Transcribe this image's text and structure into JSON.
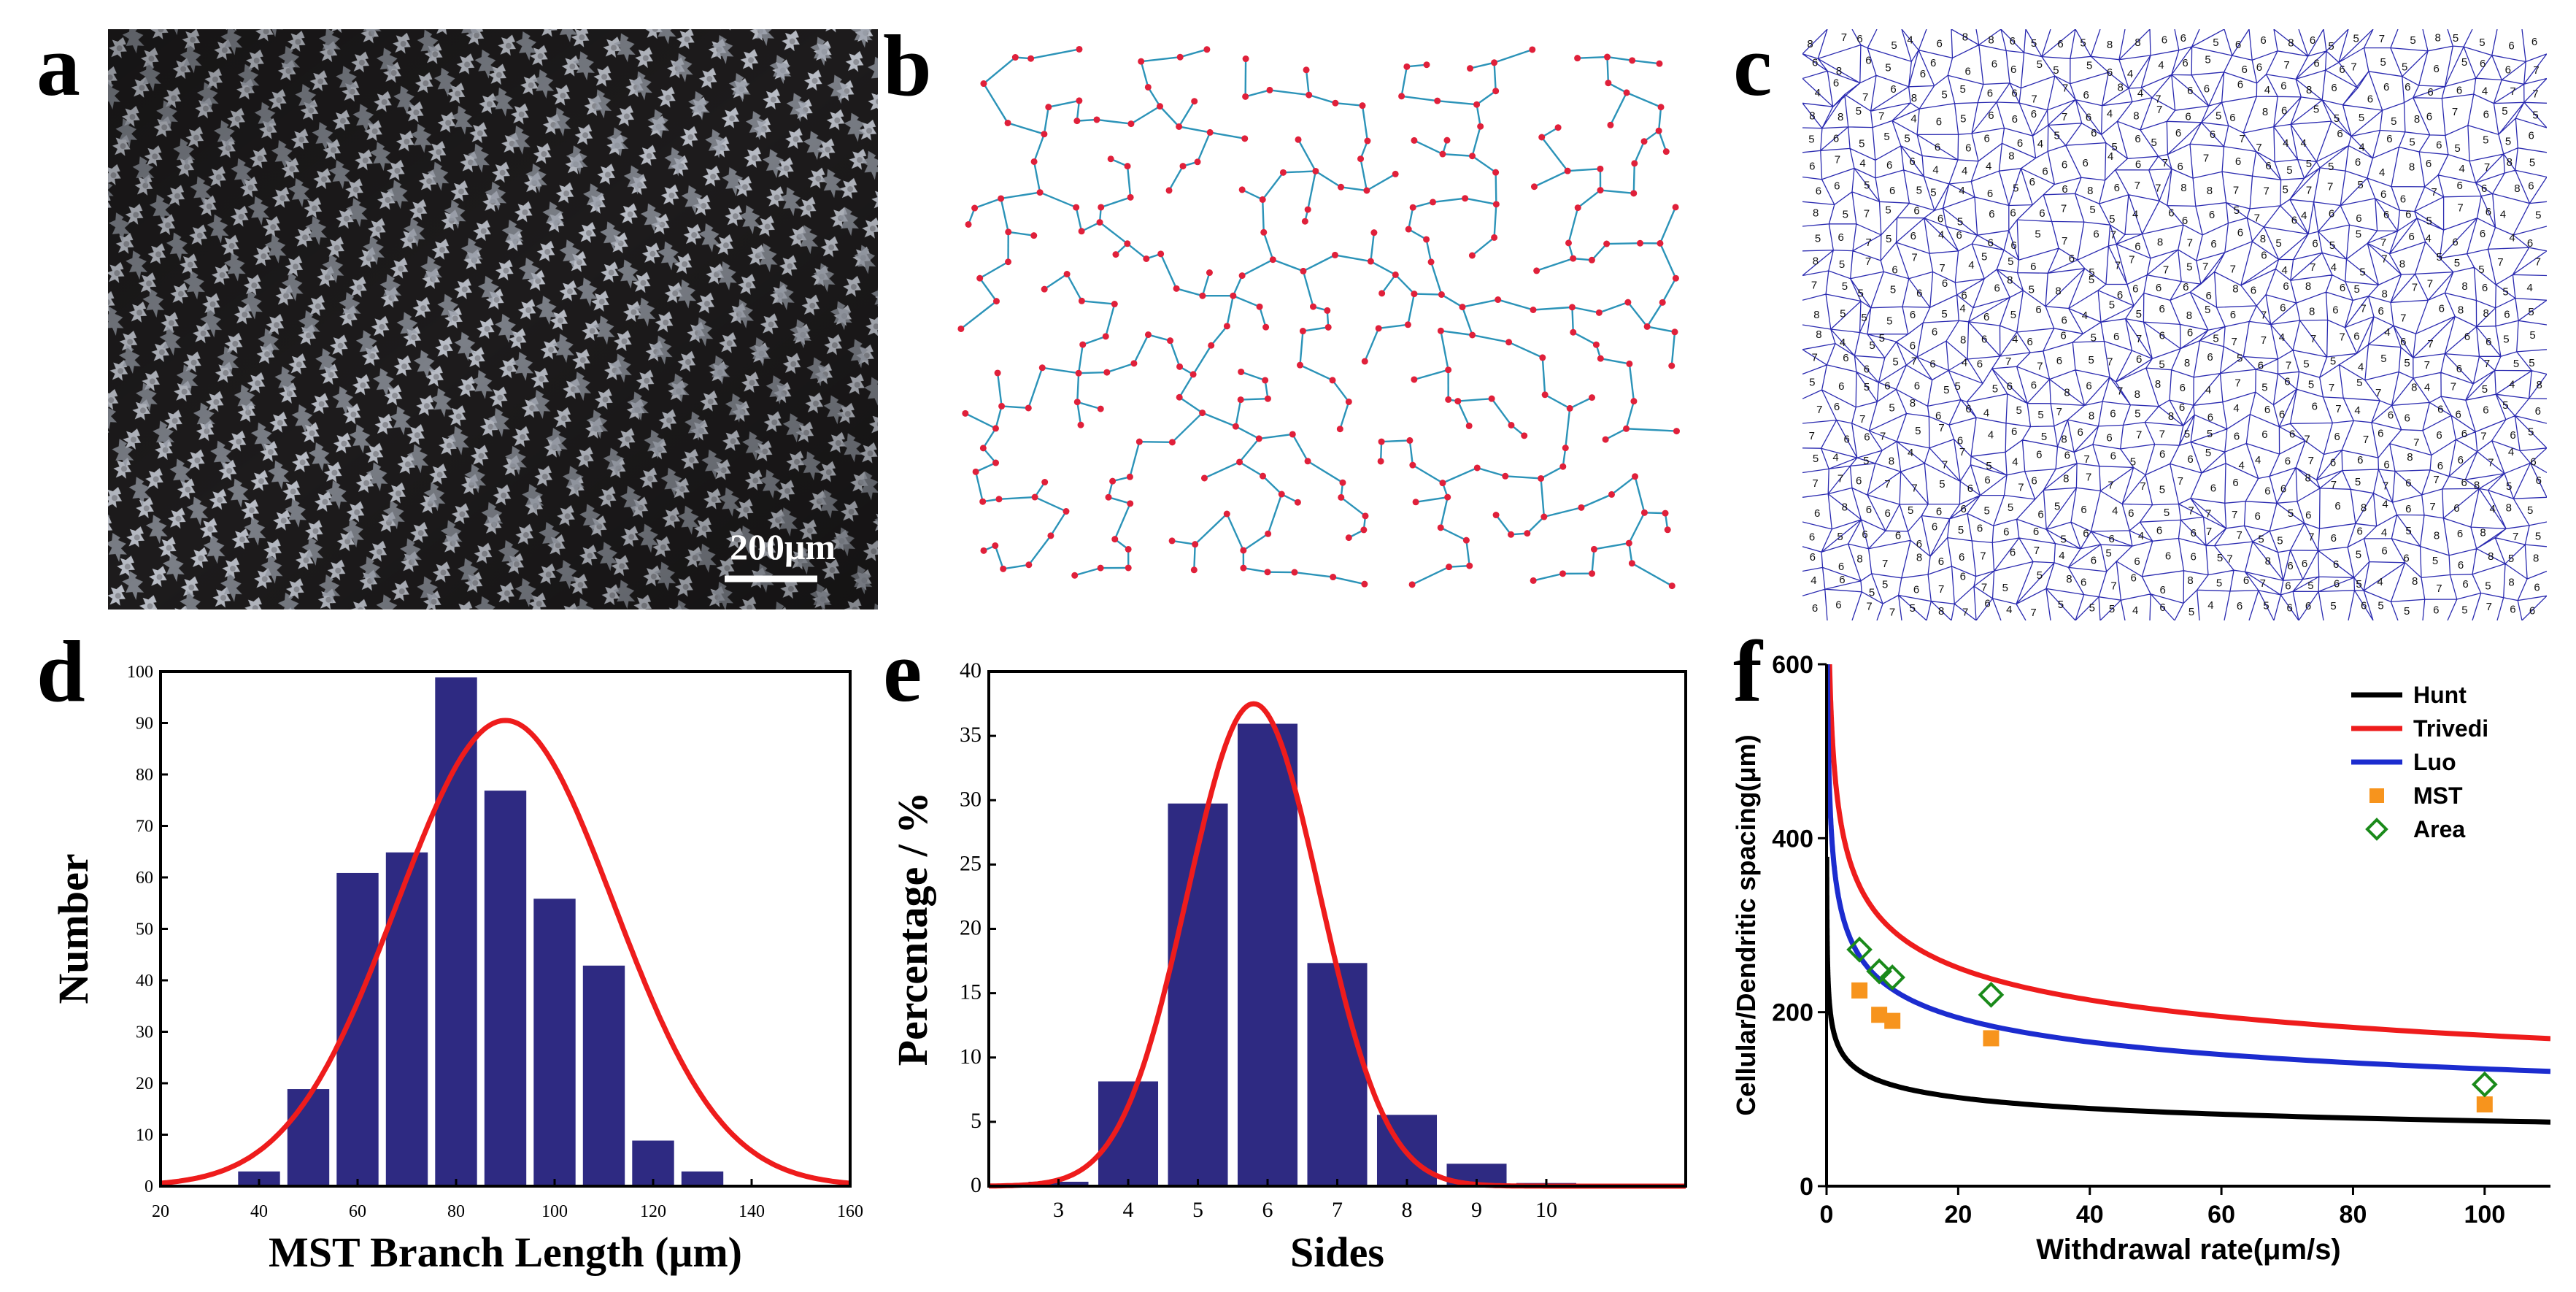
{
  "panels": {
    "a": {
      "letter": "a",
      "scale_bar": "200μm"
    },
    "b": {
      "letter": "b"
    },
    "c": {
      "letter": "c"
    },
    "d": {
      "letter": "d"
    },
    "e": {
      "letter": "e"
    },
    "f": {
      "letter": "f"
    }
  },
  "chart_data": [
    {
      "id": "d",
      "type": "bar",
      "title": "",
      "xlabel": "MST Branch Length (μm)",
      "ylabel": "Number",
      "xlim": [
        20,
        160
      ],
      "ylim": [
        0,
        100
      ],
      "xticks": [
        "20",
        "40",
        "60",
        "80",
        "100",
        "120",
        "140",
        "160"
      ],
      "yticks": [
        "0",
        "10",
        "20",
        "30",
        "40",
        "50",
        "60",
        "70",
        "80",
        "90",
        "100"
      ],
      "x": [
        40,
        50,
        60,
        70,
        80,
        90,
        100,
        110,
        120,
        130,
        140
      ],
      "values": [
        3,
        19,
        61,
        65,
        99,
        77,
        56,
        43,
        9,
        3,
        0
      ],
      "bar_color": "#2e2a82",
      "fit": {
        "type": "gaussian",
        "center": 90,
        "peak": 90.5,
        "sigma": 22,
        "color": "#ee1c1c"
      }
    },
    {
      "id": "e",
      "type": "bar",
      "title": "",
      "xlabel": "Sides",
      "ylabel": "Percentage / %",
      "xlim": [
        2,
        12
      ],
      "ylim": [
        0,
        40
      ],
      "xticks": [
        "3",
        "4",
        "5",
        "6",
        "7",
        "8",
        "9",
        "10"
      ],
      "yticks": [
        "0",
        "5",
        "10",
        "15",
        "20",
        "25",
        "30",
        "35",
        "40"
      ],
      "categories": [
        "3",
        "4",
        "5",
        "6",
        "7",
        "8",
        "9",
        "10"
      ],
      "values": [
        0.4,
        8.2,
        29.8,
        36,
        17.4,
        5.6,
        1.8,
        0.3
      ],
      "bar_color": "#2e2a82",
      "fit": {
        "type": "gaussian",
        "center": 5.8,
        "peak": 37.5,
        "sigma": 0.95,
        "color": "#ee1c1c"
      }
    },
    {
      "id": "f",
      "type": "line",
      "title": "",
      "xlabel": "Withdrawal rate(μm/s)",
      "ylabel": "Cellular/Dendritic spacing(μm)",
      "xlim": [
        0,
        110
      ],
      "ylim": [
        0,
        600
      ],
      "xticks": [
        "0",
        "20",
        "40",
        "60",
        "80",
        "100"
      ],
      "yticks": [
        "0",
        "200",
        "400",
        "600"
      ],
      "series": [
        {
          "name": "Hunt",
          "color": "#000000",
          "kind": "line",
          "a": 180,
          "exp": -0.19
        },
        {
          "name": "Trivedi",
          "color": "#ee1c1c",
          "kind": "line",
          "a": 500,
          "exp": -0.23
        },
        {
          "name": "Luo",
          "color": "#1c2ccf",
          "kind": "line",
          "a": 380,
          "exp": -0.225
        },
        {
          "name": "MST",
          "color": "#f7941d",
          "kind": "scatter",
          "marker": "square",
          "points": [
            [
              5,
              225
            ],
            [
              8,
              197
            ],
            [
              10,
              190
            ],
            [
              25,
              170
            ],
            [
              100,
              94
            ]
          ]
        },
        {
          "name": "Area",
          "color": "#1a8a1a",
          "kind": "scatter",
          "marker": "diamond",
          "points": [
            [
              5,
              272
            ],
            [
              8,
              247
            ],
            [
              10,
              240
            ],
            [
              25,
              220
            ],
            [
              100,
              117
            ]
          ]
        }
      ],
      "legend_position": "top-right"
    }
  ]
}
